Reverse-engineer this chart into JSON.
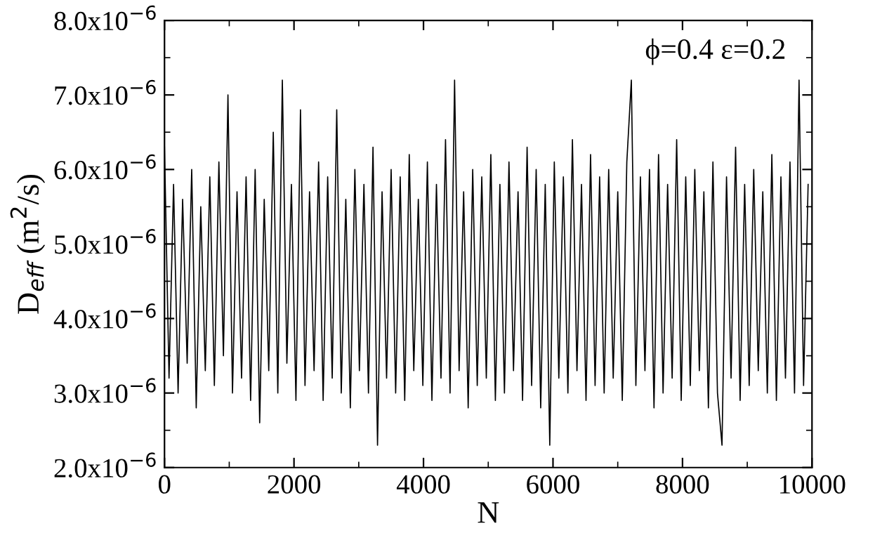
{
  "chart_data": {
    "type": "line",
    "xlabel": "N",
    "ylabel": "D$_{eff}$ (m$^{2}$/s)",
    "annotations": [
      "ϕ=0.4 ε=0.2"
    ],
    "xlim": [
      0,
      10000
    ],
    "xticks": [
      0,
      2000,
      4000,
      6000,
      8000,
      10000
    ],
    "ylim": [
      2e-06,
      8e-06
    ],
    "yticks": [
      {
        "value": 2e-06,
        "label": "2.0x10$^{−6}$"
      },
      {
        "value": 3e-06,
        "label": "3.0x10$^{−6}$"
      },
      {
        "value": 4e-06,
        "label": "4.0x10$^{−6}$"
      },
      {
        "value": 5e-06,
        "label": "5.0x10$^{−6}$"
      },
      {
        "value": 6e-06,
        "label": "6.0x10$^{−6}$"
      },
      {
        "value": 7e-06,
        "label": "7.0x10$^{−6}$"
      },
      {
        "value": 8e-06,
        "label": "8.0x10$^{−6}$"
      }
    ],
    "grid": false,
    "legend": false,
    "marker": "none",
    "line_style": "solid",
    "series": [
      {
        "color": "#000000",
        "x": [
          0,
          70,
          140,
          210,
          280,
          350,
          420,
          490,
          560,
          630,
          700,
          770,
          840,
          910,
          980,
          1050,
          1120,
          1190,
          1260,
          1330,
          1400,
          1470,
          1540,
          1610,
          1680,
          1750,
          1820,
          1890,
          1960,
          2030,
          2100,
          2170,
          2240,
          2310,
          2380,
          2450,
          2520,
          2590,
          2660,
          2730,
          2800,
          2870,
          2940,
          3010,
          3080,
          3150,
          3220,
          3290,
          3360,
          3430,
          3500,
          3570,
          3640,
          3710,
          3780,
          3850,
          3920,
          3990,
          4060,
          4130,
          4200,
          4270,
          4340,
          4410,
          4480,
          4550,
          4620,
          4690,
          4760,
          4830,
          4900,
          4970,
          5040,
          5110,
          5180,
          5250,
          5320,
          5390,
          5460,
          5530,
          5600,
          5670,
          5740,
          5810,
          5880,
          5950,
          6020,
          6090,
          6160,
          6230,
          6300,
          6370,
          6440,
          6510,
          6580,
          6650,
          6720,
          6790,
          6860,
          6930,
          7000,
          7070,
          7140,
          7210,
          7280,
          7350,
          7420,
          7490,
          7560,
          7630,
          7700,
          7770,
          7840,
          7910,
          7980,
          8050,
          8120,
          8190,
          8260,
          8330,
          8400,
          8470,
          8540,
          8610,
          8680,
          8750,
          8820,
          8890,
          8960,
          9030,
          9100,
          9170,
          9240,
          9310,
          9380,
          9450,
          9520,
          9590,
          9660,
          9730,
          9800,
          9870,
          9940
        ],
        "values": [
          6.3e-06,
          3.2e-06,
          5.8e-06,
          3e-06,
          5.6e-06,
          3.4e-06,
          6e-06,
          2.8e-06,
          5.5e-06,
          3.3e-06,
          5.9e-06,
          3.1e-06,
          6.1e-06,
          3.5e-06,
          7e-06,
          3e-06,
          5.7e-06,
          3.2e-06,
          5.9e-06,
          2.9e-06,
          6e-06,
          2.6e-06,
          5.6e-06,
          3.3e-06,
          6.5e-06,
          3e-06,
          7.2e-06,
          3.4e-06,
          5.8e-06,
          2.9e-06,
          6.8e-06,
          3.1e-06,
          5.7e-06,
          3.3e-06,
          6.1e-06,
          2.9e-06,
          5.9e-06,
          3.2e-06,
          6.8e-06,
          3e-06,
          5.6e-06,
          2.8e-06,
          6e-06,
          3.3e-06,
          5.8e-06,
          3e-06,
          6.3e-06,
          2.3e-06,
          5.7e-06,
          3.2e-06,
          6e-06,
          3e-06,
          5.9e-06,
          2.9e-06,
          6.2e-06,
          3.3e-06,
          5.6e-06,
          3.1e-06,
          6.1e-06,
          2.9e-06,
          5.8e-06,
          3.2e-06,
          6.4e-06,
          3e-06,
          7.2e-06,
          3.3e-06,
          5.7e-06,
          2.8e-06,
          6e-06,
          3.1e-06,
          5.9e-06,
          3.2e-06,
          6.2e-06,
          2.9e-06,
          5.8e-06,
          3e-06,
          6.1e-06,
          3.3e-06,
          5.7e-06,
          2.9e-06,
          6.3e-06,
          3.1e-06,
          6e-06,
          2.8e-06,
          5.8e-06,
          2.3e-06,
          6.1e-06,
          3.2e-06,
          5.9e-06,
          3e-06,
          6.4e-06,
          3.3e-06,
          5.8e-06,
          2.9e-06,
          6.2e-06,
          3.1e-06,
          5.9e-06,
          3e-06,
          6e-06,
          3.2e-06,
          5.7e-06,
          2.9e-06,
          6.1e-06,
          7.2e-06,
          3.1e-06,
          5.9e-06,
          3.3e-06,
          6e-06,
          2.8e-06,
          6.2e-06,
          3e-06,
          5.8e-06,
          3.2e-06,
          6.4e-06,
          2.9e-06,
          5.9e-06,
          3.1e-06,
          6e-06,
          3.3e-06,
          5.7e-06,
          2.8e-06,
          6.1e-06,
          3e-06,
          2.3e-06,
          5.9e-06,
          3.2e-06,
          6.3e-06,
          2.9e-06,
          5.8e-06,
          3.1e-06,
          6e-06,
          3.3e-06,
          5.7e-06,
          3e-06,
          6.2e-06,
          2.9e-06,
          5.9e-06,
          3.2e-06,
          6.1e-06,
          3e-06,
          7.2e-06,
          3.1e-06,
          5.8e-06
        ]
      }
    ]
  }
}
